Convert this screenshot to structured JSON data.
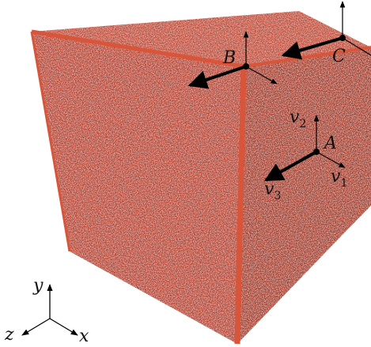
{
  "colors": {
    "cube_front": "#b9412c",
    "cube_right": "#a83823",
    "cube_top": "#c24a33",
    "cube_edge": "#d8553a",
    "arrow": "#000000",
    "text": "#111111"
  },
  "points": {
    "A": "A",
    "B": "B",
    "C": "C"
  },
  "vectors": {
    "v1": {
      "base": "v",
      "sub": "1"
    },
    "v2": {
      "base": "v",
      "sub": "2"
    },
    "v3": {
      "base": "v",
      "sub": "3"
    }
  },
  "axes": {
    "x": "x",
    "y": "y",
    "z": "z"
  }
}
